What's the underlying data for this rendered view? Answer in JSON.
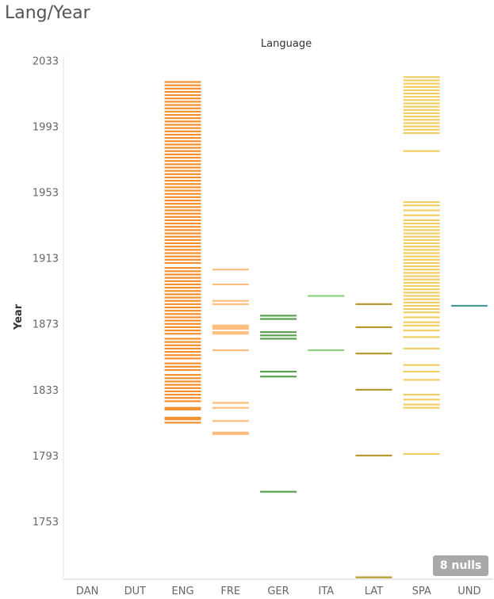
{
  "title": "Lang/Year",
  "nulls_label": "8 nulls",
  "chart_data": {
    "type": "strip",
    "column_header": "Language",
    "ylabel": "Year",
    "ylim": [
      1713,
      2038
    ],
    "yticks": [
      1753,
      1793,
      1833,
      1873,
      1913,
      1953,
      1993,
      2033
    ],
    "categories": [
      "DAN",
      "DUT",
      "ENG",
      "FRE",
      "GER",
      "ITA",
      "LAT",
      "SPA",
      "UND"
    ],
    "colors": {
      "ENG": "#f28e2b",
      "FRE": "#ffbe7d",
      "GER": "#59a14f",
      "ITA": "#8cd17d",
      "LAT": "#b6992d",
      "SPA": "#f1ce63",
      "UND": "#499894"
    },
    "series": [
      {
        "name": "DAN",
        "years": []
      },
      {
        "name": "DUT",
        "years": []
      },
      {
        "name": "ENG",
        "years": [
          1813,
          1815,
          1816,
          1821,
          1822,
          1826,
          1828,
          1830,
          1832,
          1834,
          1836,
          1838,
          1840,
          1842,
          1845,
          1847,
          1849,
          1852,
          1854,
          1856,
          1858,
          1860,
          1862,
          1864,
          1867,
          1869,
          1871,
          1873,
          1875,
          1877,
          1879,
          1881,
          1883,
          1885,
          1887,
          1889,
          1891,
          1893,
          1895,
          1897,
          1899,
          1901,
          1903,
          1905,
          1907,
          1910,
          1912,
          1914,
          1916,
          1918,
          1920,
          1922,
          1924,
          1926,
          1928,
          1930,
          1932,
          1934,
          1936,
          1938,
          1940,
          1942,
          1944,
          1946,
          1948,
          1950,
          1952,
          1954,
          1956,
          1958,
          1960,
          1962,
          1964,
          1966,
          1968,
          1970,
          1972,
          1974,
          1976,
          1978,
          1980,
          1982,
          1984,
          1986,
          1988,
          1990,
          1992,
          1994,
          1996,
          1998,
          2000,
          2002,
          2004,
          2006,
          2008,
          2010,
          2012,
          2014,
          2016,
          2018,
          2020
        ]
      },
      {
        "name": "FRE",
        "years": [
          1806,
          1807,
          1814,
          1822,
          1825,
          1857,
          1867,
          1868,
          1870,
          1871,
          1872,
          1885,
          1887,
          1897,
          1906
        ]
      },
      {
        "name": "GER",
        "years": [
          1771,
          1841,
          1844,
          1864,
          1866,
          1868,
          1876,
          1878
        ]
      },
      {
        "name": "ITA",
        "years": [
          1857,
          1890
        ]
      },
      {
        "name": "LAT",
        "years": [
          1719,
          1793,
          1833,
          1855,
          1871,
          1885
        ]
      },
      {
        "name": "SPA",
        "years": [
          1794,
          1822,
          1824,
          1827,
          1830,
          1839,
          1844,
          1848,
          1858,
          1865,
          1869,
          1872,
          1874,
          1877,
          1880,
          1882,
          1884,
          1886,
          1888,
          1890,
          1892,
          1894,
          1896,
          1898,
          1900,
          1902,
          1904,
          1906,
          1908,
          1910,
          1912,
          1914,
          1916,
          1918,
          1920,
          1922,
          1924,
          1926,
          1928,
          1930,
          1932,
          1934,
          1936,
          1939,
          1942,
          1945,
          1947,
          1978,
          1989,
          1991,
          1993,
          1995,
          1997,
          1999,
          2001,
          2003,
          2005,
          2007,
          2009,
          2011,
          2013,
          2015,
          2017,
          2019,
          2021,
          2023
        ]
      },
      {
        "name": "UND",
        "years": [
          1884
        ]
      }
    ]
  }
}
